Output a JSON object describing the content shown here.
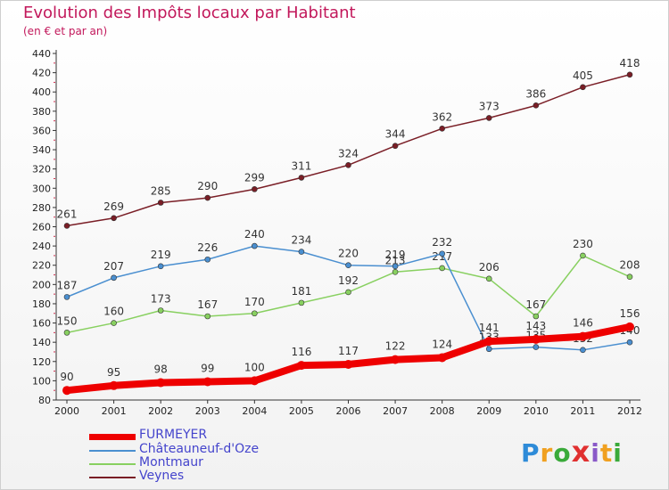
{
  "title": "Evolution des Impôts locaux par Habitant",
  "subtitle": "(en € et par an)",
  "logo": {
    "text": "Proxiti",
    "colors": [
      "#2e8bd8",
      "#f0a020",
      "#3aaa3a",
      "#e03030",
      "#8a5ac8",
      "#f0a020",
      "#3aaa3a"
    ]
  },
  "chart_data": {
    "type": "line",
    "title": "Evolution des Impôts locaux par Habitant",
    "subtitle": "(en € et par an)",
    "xlabel": "",
    "ylabel": "",
    "x": [
      "2000",
      "2001",
      "2002",
      "2003",
      "2004",
      "2005",
      "2006",
      "2007",
      "2008",
      "2009",
      "2010",
      "2011",
      "2012"
    ],
    "ylim": [
      80,
      440
    ],
    "yticks": [
      80,
      100,
      120,
      140,
      160,
      180,
      200,
      220,
      240,
      260,
      280,
      300,
      320,
      340,
      360,
      380,
      400,
      420,
      440
    ],
    "grid": false,
    "legend_position": "bottom-left",
    "series": [
      {
        "name": "FURMEYER",
        "color": "#ee0000",
        "values": [
          90,
          95,
          98,
          99,
          100,
          116,
          117,
          122,
          124,
          141,
          143,
          146,
          156
        ]
      },
      {
        "name": "Châteauneuf-d'Oze",
        "color": "#4a8fd0",
        "values": [
          187,
          207,
          219,
          226,
          240,
          234,
          220,
          219,
          232,
          133,
          135,
          132,
          140
        ]
      },
      {
        "name": "Montmaur",
        "color": "#88d060",
        "values": [
          150,
          160,
          173,
          167,
          170,
          181,
          192,
          213,
          217,
          206,
          167,
          230,
          208
        ]
      },
      {
        "name": "Veynes",
        "color": "#7a1e26",
        "values": [
          261,
          269,
          285,
          290,
          299,
          311,
          324,
          344,
          362,
          373,
          386,
          405,
          418
        ]
      }
    ]
  }
}
